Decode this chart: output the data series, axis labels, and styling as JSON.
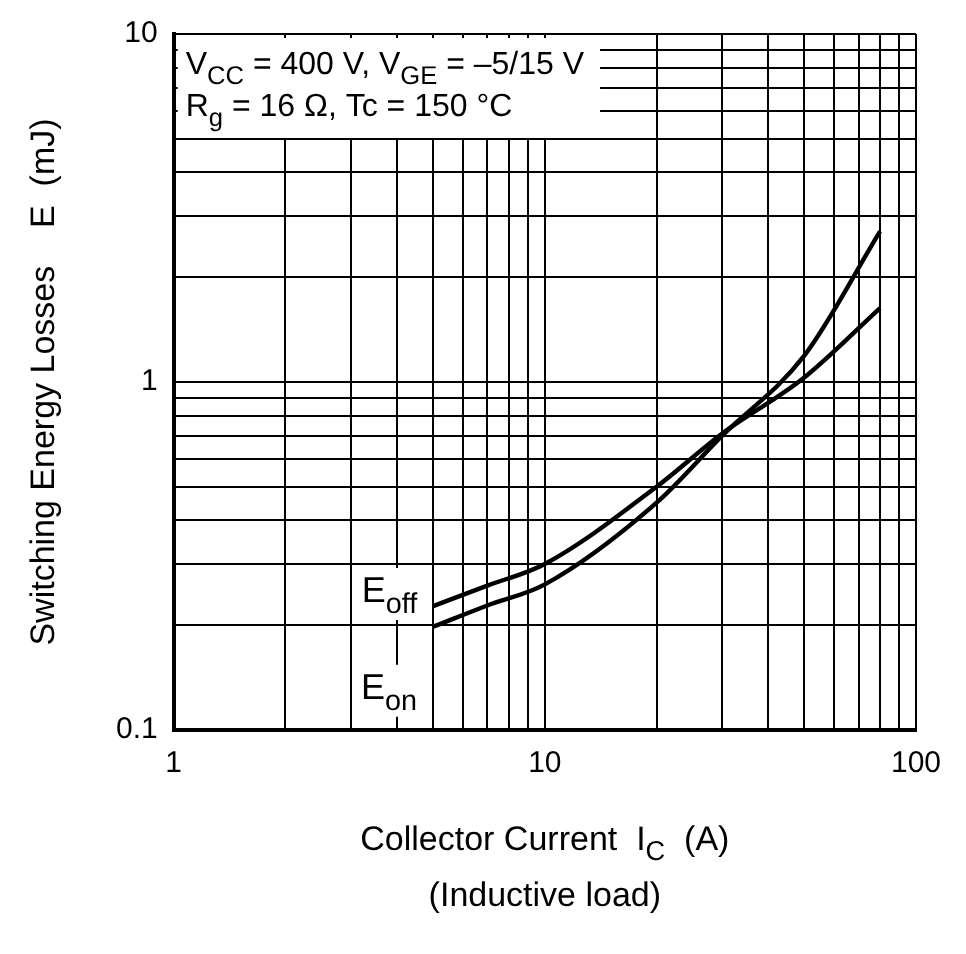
{
  "chart_data": {
    "type": "line",
    "xlabel": "Collector Current  I$_{C}$  (A)",
    "ylabel": "Switching Energy Losses    E  (mJ)",
    "log": "xy",
    "grid": true,
    "legend": false,
    "marker": "none",
    "line_style": "solid",
    "xlim": [
      1,
      100
    ],
    "ylim": [
      0.1,
      10
    ],
    "xticks": [
      1,
      {
        "value": 2,
        "label": null
      },
      {
        "value": 3,
        "label": null
      },
      {
        "value": 4,
        "label": null
      },
      {
        "value": 5,
        "label": null
      },
      {
        "value": 6,
        "label": null
      },
      {
        "value": 7,
        "label": null
      },
      {
        "value": 8,
        "label": null
      },
      {
        "value": 9,
        "label": null
      },
      10,
      {
        "value": 20,
        "label": null
      },
      {
        "value": 30,
        "label": null
      },
      {
        "value": 40,
        "label": null
      },
      {
        "value": 50,
        "label": null
      },
      {
        "value": 60,
        "label": null
      },
      {
        "value": 70,
        "label": null
      },
      {
        "value": 80,
        "label": null
      },
      {
        "value": 90,
        "label": null
      },
      100
    ],
    "yticks": [
      {
        "value": 0.1,
        "label": "0.1"
      },
      {
        "value": 0.2,
        "label": null
      },
      {
        "value": 0.3,
        "label": null
      },
      {
        "value": 0.4,
        "label": null
      },
      {
        "value": 0.5,
        "label": null
      },
      {
        "value": 0.6,
        "label": null
      },
      {
        "value": 0.7,
        "label": null
      },
      {
        "value": 0.8,
        "label": null
      },
      {
        "value": 0.9,
        "label": null
      },
      1,
      {
        "value": 2,
        "label": null
      },
      {
        "value": 3,
        "label": null
      },
      {
        "value": 4,
        "label": null
      },
      {
        "value": 5,
        "label": null
      },
      {
        "value": 6,
        "label": null
      },
      {
        "value": 7,
        "label": null
      },
      {
        "value": 8,
        "label": null
      },
      {
        "value": 9,
        "label": null
      },
      10
    ],
    "series": [
      {
        "name": "E$_{off}$",
        "color": "#000000",
        "x": [
          5,
          7,
          10,
          20,
          30,
          50,
          80
        ],
        "values": [
          0.227,
          0.26,
          0.3,
          0.5,
          0.71,
          1.03,
          1.63
        ]
      },
      {
        "name": "E$_{on}$",
        "color": "#000000",
        "x": [
          5,
          7,
          10,
          20,
          30,
          50,
          80
        ],
        "values": [
          0.198,
          0.228,
          0.262,
          0.45,
          0.7,
          1.19,
          2.71
        ]
      }
    ],
    "annotations": [
      "V$_{CC}$ = 400 V, V$_{GE}$ = –5/15 V",
      "R$_{g}$ = 16 Ω, Tc = 150 °C",
      "(Inductive load)"
    ]
  }
}
